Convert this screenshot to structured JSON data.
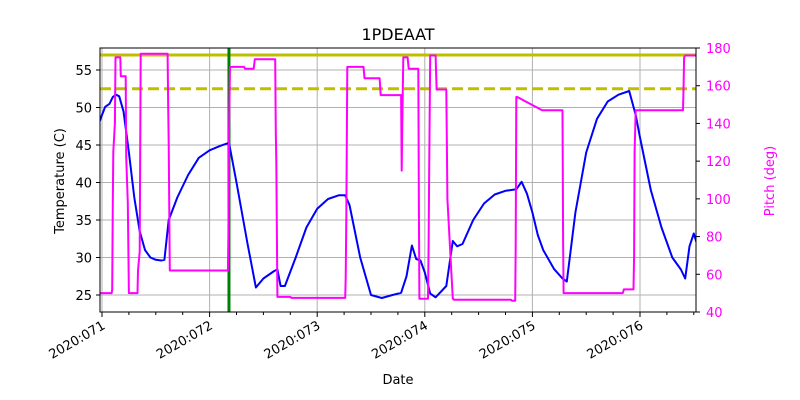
{
  "chart_data": {
    "type": "line",
    "title": "1PDEAAT",
    "xlabel": "Date",
    "ylabel": "Temperature (C)",
    "y2label": "Pitch (deg)",
    "x_tick_labels": [
      "2020:071",
      "2020:072",
      "2020:073",
      "2020:074",
      "2020:075",
      "2020:076"
    ],
    "x_ticks_day": [
      71,
      72,
      73,
      74,
      75,
      76
    ],
    "xlim_day": [
      70.98,
      76.55
    ],
    "ylim": [
      22.7,
      58
    ],
    "y_ticks": [
      25,
      30,
      35,
      40,
      45,
      50,
      55
    ],
    "y2lim": [
      40,
      180
    ],
    "y2_ticks": [
      40,
      60,
      80,
      100,
      120,
      140,
      160,
      180
    ],
    "grid": true,
    "reference_lines": {
      "planning_limit_solid": {
        "value": 57.0,
        "color": "#bfbf00",
        "style": "solid"
      },
      "caution_limit_dashed": {
        "value": 52.5,
        "color": "#bfbf00",
        "style": "dashed"
      },
      "vertical_marker": {
        "day": 72.18,
        "color": "#008000",
        "style": "solid"
      }
    },
    "series": [
      {
        "name": "Temperature",
        "axis": "left",
        "color": "#0000ff",
        "x": [
          70.98,
          71.0,
          71.03,
          71.07,
          71.1,
          71.13,
          71.16,
          71.2,
          71.25,
          71.3,
          71.35,
          71.4,
          71.45,
          71.5,
          71.55,
          71.58,
          71.62,
          71.7,
          71.8,
          71.9,
          72.0,
          72.1,
          72.18,
          72.25,
          72.35,
          72.43,
          72.5,
          72.6,
          72.63,
          72.66,
          72.7,
          72.8,
          72.9,
          73.0,
          73.1,
          73.2,
          73.26,
          73.3,
          73.4,
          73.5,
          73.6,
          73.7,
          73.78,
          73.83,
          73.88,
          73.92,
          73.96,
          74.0,
          74.05,
          74.1,
          74.2,
          74.26,
          74.3,
          74.35,
          74.45,
          74.55,
          74.65,
          74.75,
          74.85,
          74.9,
          74.95,
          75.0,
          75.05,
          75.1,
          75.2,
          75.28,
          75.32,
          75.4,
          75.5,
          75.6,
          75.7,
          75.8,
          75.9,
          75.96,
          76.0,
          76.1,
          76.2,
          76.3,
          76.38,
          76.42,
          76.46,
          76.5,
          76.54
        ],
        "values": [
          48.2,
          49.0,
          50.1,
          50.5,
          51.4,
          51.7,
          51.5,
          49.5,
          44.0,
          38.0,
          33.5,
          31.0,
          30.0,
          29.7,
          29.6,
          29.7,
          35.0,
          38.0,
          41.0,
          43.3,
          44.3,
          44.9,
          45.3,
          40.0,
          32.0,
          26.0,
          27.2,
          28.2,
          28.4,
          26.2,
          26.2,
          30.0,
          34.0,
          36.5,
          37.8,
          38.3,
          38.3,
          37.0,
          30.0,
          25.0,
          24.6,
          25.0,
          25.3,
          27.5,
          31.6,
          29.8,
          29.6,
          28.0,
          25.2,
          24.7,
          26.2,
          32.2,
          31.5,
          31.8,
          35.0,
          37.2,
          38.4,
          38.9,
          39.1,
          40.1,
          38.5,
          36.0,
          33.0,
          31.0,
          28.5,
          27.2,
          26.8,
          36.0,
          44.0,
          48.5,
          50.8,
          51.7,
          52.2,
          49.0,
          46.0,
          39.0,
          34.0,
          30.0,
          28.4,
          27.2,
          31.5,
          33.2,
          31.3
        ]
      },
      {
        "name": "Pitch",
        "axis": "right",
        "color": "#ff00ff",
        "x": [
          70.98,
          71.09,
          71.095,
          71.1,
          71.105,
          71.12,
          71.125,
          71.17,
          71.175,
          71.22,
          71.225,
          71.24,
          71.25,
          71.33,
          71.335,
          71.35,
          71.36,
          71.61,
          71.615,
          71.62,
          71.63,
          72.17,
          72.175,
          72.18,
          72.19,
          72.32,
          72.33,
          72.41,
          72.42,
          72.61,
          72.615,
          72.62,
          72.63,
          72.75,
          72.76,
          73.26,
          73.265,
          73.27,
          73.28,
          73.43,
          73.44,
          73.58,
          73.59,
          73.78,
          73.785,
          73.79,
          73.8,
          73.84,
          73.85,
          73.94,
          73.945,
          73.95,
          74.03,
          74.035,
          74.04,
          74.05,
          74.1,
          74.11,
          74.2,
          74.205,
          74.21,
          74.26,
          74.265,
          74.27,
          74.8,
          74.81,
          74.84,
          74.845,
          74.85,
          74.86,
          75.09,
          75.1,
          75.28,
          75.285,
          75.29,
          75.3,
          75.84,
          75.85,
          75.94,
          75.945,
          75.95,
          75.96,
          76.4,
          76.405,
          76.41,
          76.42,
          76.55
        ],
        "values": [
          50,
          50,
          52,
          98,
          125,
          140,
          175,
          175,
          165,
          165,
          122,
          98,
          50,
          50,
          62,
          72,
          177,
          177,
          148,
          130,
          62,
          62,
          80,
          135,
          170,
          170,
          169,
          169,
          174,
          174,
          135,
          120,
          48,
          48,
          47.5,
          47.5,
          58,
          90,
          170,
          170,
          164,
          164,
          155,
          155,
          115,
          137,
          175,
          175,
          169,
          169,
          95,
          47,
          47,
          75,
          110,
          176,
          176,
          158,
          158,
          128,
          100,
          47,
          47,
          46.5,
          46.5,
          46,
          46,
          75,
          154,
          154,
          147,
          147,
          147,
          78,
          50,
          50,
          50,
          52,
          52,
          70,
          125,
          147,
          147,
          160,
          175,
          176,
          176
        ]
      }
    ]
  }
}
